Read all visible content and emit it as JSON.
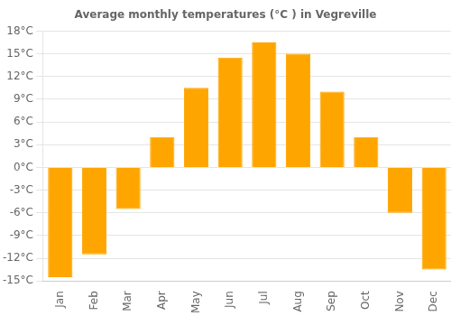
{
  "chart_data": {
    "type": "bar",
    "title": "Average monthly temperatures (°C ) in Vegreville",
    "categories": [
      "Jan",
      "Feb",
      "Mar",
      "Apr",
      "May",
      "Jun",
      "Jul",
      "Aug",
      "Sep",
      "Oct",
      "Nov",
      "Dec"
    ],
    "values": [
      -14.5,
      -11.5,
      -5.5,
      4.0,
      10.5,
      14.5,
      16.5,
      15.0,
      10.0,
      4.0,
      -6.0,
      -13.5
    ],
    "color": "#FFA500",
    "ylim": [
      -15,
      18
    ],
    "yticks": [
      {
        "value": -15,
        "label": "-15°C"
      },
      {
        "value": -12,
        "label": "-12°C"
      },
      {
        "value": -9,
        "label": "-9°C"
      },
      {
        "value": -6,
        "label": "-6°C"
      },
      {
        "value": -3,
        "label": "-3°C"
      },
      {
        "value": 0,
        "label": "0°C"
      },
      {
        "value": 3,
        "label": "3°C"
      },
      {
        "value": 6,
        "label": "6°C"
      },
      {
        "value": 9,
        "label": "9°C"
      },
      {
        "value": 12,
        "label": "12°C"
      },
      {
        "value": 15,
        "label": "15°C"
      },
      {
        "value": 18,
        "label": "18°C"
      }
    ],
    "grid": true
  }
}
